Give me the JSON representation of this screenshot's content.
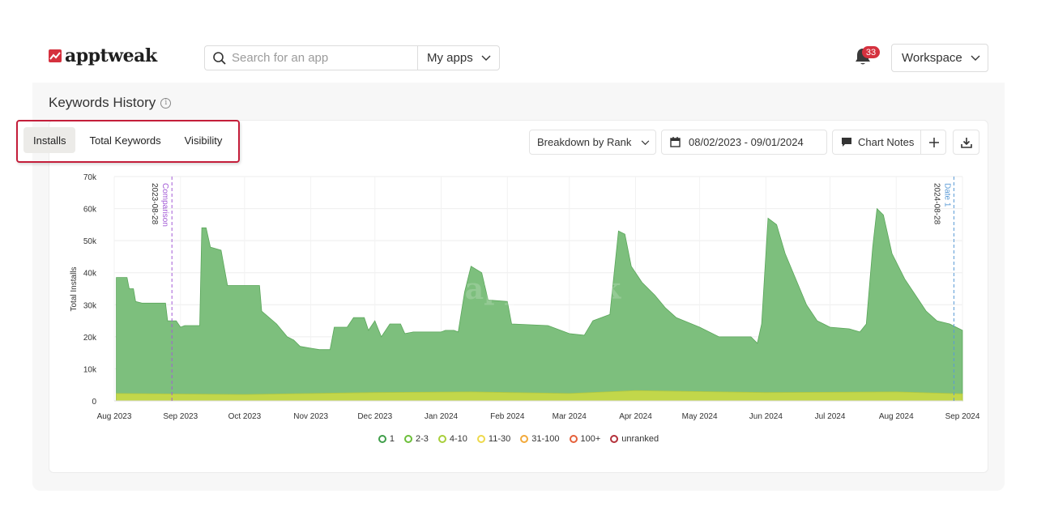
{
  "brand": {
    "name": "apptweak"
  },
  "search": {
    "placeholder": "Search for an app",
    "scope_label": "My apps"
  },
  "notifications": {
    "count": "33"
  },
  "workspace": {
    "label": "Workspace"
  },
  "section": {
    "title": "Keywords History"
  },
  "tabs": [
    {
      "label": "Installs",
      "active": true
    },
    {
      "label": "Total Keywords",
      "active": false
    },
    {
      "label": "Visibility",
      "active": false
    }
  ],
  "toolbar": {
    "breakdown_label": "Breakdown by Rank",
    "date_range": "08/02/2023 - 09/01/2024",
    "chart_notes_label": "Chart Notes"
  },
  "icons": {
    "search": "search-icon",
    "bell": "bell-icon",
    "calendar": "calendar-icon",
    "comment": "comment-icon",
    "plus": "plus-icon",
    "download": "download-icon",
    "info": "info-icon"
  },
  "colors": {
    "accent": "#d5313e",
    "area_main": "#7dbf7d",
    "tab_highlight": "#c41e3a"
  },
  "chart_data": {
    "type": "area",
    "ylabel": "Total Installs",
    "xlabel": "",
    "ylim": [
      0,
      70000
    ],
    "yticks": [
      {
        "label": "70k",
        "value": 70000
      },
      {
        "label": "60k",
        "value": 60000
      },
      {
        "label": "50k",
        "value": 50000
      },
      {
        "label": "40k",
        "value": 40000
      },
      {
        "label": "30k",
        "value": 30000
      },
      {
        "label": "20k",
        "value": 20000
      },
      {
        "label": "10k",
        "value": 10000
      },
      {
        "label": "0",
        "value": 0
      }
    ],
    "xticks": [
      {
        "label": "Aug 2023",
        "date": "2023-08-01"
      },
      {
        "label": "Sep 2023",
        "date": "2023-09-01"
      },
      {
        "label": "Oct 2023",
        "date": "2023-10-01"
      },
      {
        "label": "Nov 2023",
        "date": "2023-11-01"
      },
      {
        "label": "Dec 2023",
        "date": "2023-12-01"
      },
      {
        "label": "Jan 2024",
        "date": "2024-01-01"
      },
      {
        "label": "Feb 2024",
        "date": "2024-02-01"
      },
      {
        "label": "Mar 2024",
        "date": "2024-03-01"
      },
      {
        "label": "Apr 2024",
        "date": "2024-04-01"
      },
      {
        "label": "May 2024",
        "date": "2024-05-01"
      },
      {
        "label": "Jun 2024",
        "date": "2024-06-01"
      },
      {
        "label": "Jul 2024",
        "date": "2024-07-01"
      },
      {
        "label": "Aug 2024",
        "date": "2024-08-01"
      },
      {
        "label": "Sep 2024",
        "date": "2024-09-01"
      }
    ],
    "xlim": [
      "2023-08-01",
      "2024-09-01"
    ],
    "grid": true,
    "legend": "bottom",
    "markers": [
      {
        "label": "Comparison",
        "date_label": "2023-08-28",
        "date": "2023-08-28",
        "color": "#a35bd6"
      },
      {
        "label": "Date 1",
        "date_label": "2024-08-28",
        "date": "2024-08-28",
        "color": "#5b9bd6"
      }
    ],
    "legend_entries": [
      {
        "name": "1",
        "color": "#3f9e4a"
      },
      {
        "name": "2-3",
        "color": "#6cbf3a"
      },
      {
        "name": "4-10",
        "color": "#a8cf3a"
      },
      {
        "name": "11-30",
        "color": "#eed94a"
      },
      {
        "name": "31-100",
        "color": "#f2a93a"
      },
      {
        "name": "100+",
        "color": "#e5603a"
      },
      {
        "name": "unranked",
        "color": "#b3313a"
      }
    ],
    "series": [
      {
        "name": "1",
        "color": "#7dbf7d",
        "points": [
          [
            "2023-08-02",
            38500
          ],
          [
            "2023-08-07",
            38500
          ],
          [
            "2023-08-08",
            35000
          ],
          [
            "2023-08-10",
            35000
          ],
          [
            "2023-08-11",
            31000
          ],
          [
            "2023-08-14",
            30500
          ],
          [
            "2023-08-25",
            30500
          ],
          [
            "2023-08-26",
            25000
          ],
          [
            "2023-08-30",
            25000
          ],
          [
            "2023-09-01",
            23000
          ],
          [
            "2023-09-03",
            23500
          ],
          [
            "2023-09-10",
            23500
          ],
          [
            "2023-09-11",
            54000
          ],
          [
            "2023-09-13",
            54000
          ],
          [
            "2023-09-15",
            48000
          ],
          [
            "2023-09-20",
            47000
          ],
          [
            "2023-09-23",
            36000
          ],
          [
            "2023-10-08",
            36000
          ],
          [
            "2023-10-09",
            28000
          ],
          [
            "2023-10-16",
            24000
          ],
          [
            "2023-10-21",
            20000
          ],
          [
            "2023-10-24",
            19000
          ],
          [
            "2023-10-27",
            17000
          ],
          [
            "2023-11-05",
            16000
          ],
          [
            "2023-11-10",
            16000
          ],
          [
            "2023-11-12",
            23000
          ],
          [
            "2023-11-18",
            23000
          ],
          [
            "2023-11-21",
            26000
          ],
          [
            "2023-11-26",
            26000
          ],
          [
            "2023-11-28",
            22000
          ],
          [
            "2023-12-01",
            25000
          ],
          [
            "2023-12-04",
            20000
          ],
          [
            "2023-12-08",
            24000
          ],
          [
            "2023-12-13",
            24000
          ],
          [
            "2023-12-15",
            21000
          ],
          [
            "2023-12-19",
            21500
          ],
          [
            "2024-01-01",
            21500
          ],
          [
            "2024-01-03",
            22000
          ],
          [
            "2024-01-07",
            22000
          ],
          [
            "2024-01-09",
            21500
          ],
          [
            "2024-01-12",
            34000
          ],
          [
            "2024-01-15",
            42000
          ],
          [
            "2024-01-20",
            40000
          ],
          [
            "2024-01-23",
            31500
          ],
          [
            "2024-02-01",
            31000
          ],
          [
            "2024-02-03",
            24000
          ],
          [
            "2024-02-20",
            23500
          ],
          [
            "2024-03-01",
            21000
          ],
          [
            "2024-03-08",
            20500
          ],
          [
            "2024-03-12",
            25000
          ],
          [
            "2024-03-20",
            27000
          ],
          [
            "2024-03-24",
            53000
          ],
          [
            "2024-03-27",
            52000
          ],
          [
            "2024-03-30",
            42000
          ],
          [
            "2024-04-04",
            37000
          ],
          [
            "2024-04-10",
            33000
          ],
          [
            "2024-04-15",
            29000
          ],
          [
            "2024-04-20",
            26000
          ],
          [
            "2024-05-01",
            23000
          ],
          [
            "2024-05-10",
            20000
          ],
          [
            "2024-05-25",
            20000
          ],
          [
            "2024-05-28",
            18000
          ],
          [
            "2024-05-30",
            24000
          ],
          [
            "2024-06-02",
            57000
          ],
          [
            "2024-06-06",
            55000
          ],
          [
            "2024-06-10",
            46000
          ],
          [
            "2024-06-15",
            38000
          ],
          [
            "2024-06-20",
            30000
          ],
          [
            "2024-06-25",
            25000
          ],
          [
            "2024-07-01",
            23000
          ],
          [
            "2024-07-10",
            22500
          ],
          [
            "2024-07-15",
            21500
          ],
          [
            "2024-07-18",
            24000
          ],
          [
            "2024-07-21",
            48000
          ],
          [
            "2024-07-23",
            60000
          ],
          [
            "2024-07-26",
            58000
          ],
          [
            "2024-07-30",
            46000
          ],
          [
            "2024-08-05",
            38000
          ],
          [
            "2024-08-10",
            33000
          ],
          [
            "2024-08-15",
            28000
          ],
          [
            "2024-08-20",
            25000
          ],
          [
            "2024-08-26",
            24000
          ],
          [
            "2024-09-01",
            22000
          ]
        ]
      },
      {
        "name": "2-3",
        "color": "#c6d948",
        "points": [
          [
            "2023-08-02",
            2300
          ],
          [
            "2023-10-01",
            2000
          ],
          [
            "2023-12-01",
            2600
          ],
          [
            "2024-01-15",
            2800
          ],
          [
            "2024-03-01",
            2300
          ],
          [
            "2024-04-01",
            3200
          ],
          [
            "2024-06-01",
            2600
          ],
          [
            "2024-08-01",
            2800
          ],
          [
            "2024-09-01",
            2200
          ]
        ]
      }
    ]
  }
}
